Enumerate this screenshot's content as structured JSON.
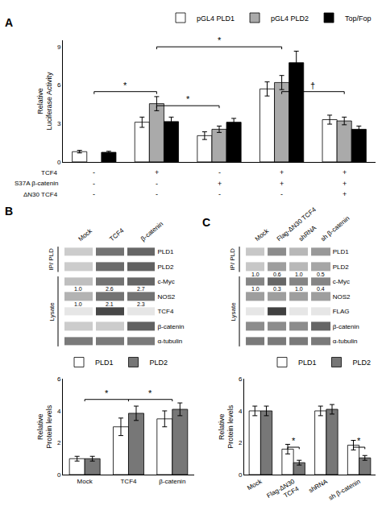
{
  "chart_data": [
    {
      "type": "bar",
      "title": "A",
      "categories": [
        null,
        null,
        null,
        null,
        null
      ],
      "series": [
        {
          "name": "pGL4 PLD1",
          "color": "white",
          "values": [
            0.8,
            3.1,
            2.05,
            5.7,
            3.3
          ],
          "errors": [
            0.1,
            0.4,
            0.3,
            0.55,
            0.35
          ]
        },
        {
          "name": "pGL4 PLD2",
          "color": "#aaaaaa",
          "values": [
            null,
            4.55,
            2.55,
            6.2,
            3.2
          ],
          "errors": [
            null,
            0.55,
            0.25,
            0.55,
            0.3
          ]
        },
        {
          "name": "Top/Fop",
          "color": "black",
          "values": [
            0.75,
            3.15,
            3.1,
            7.75,
            2.55
          ],
          "errors": [
            0.08,
            0.35,
            0.3,
            0.9,
            0.25
          ]
        }
      ],
      "ylabel": "Relative\nLuciferase Activity",
      "ylim": [
        0,
        9.5
      ],
      "yticks": [
        0,
        3,
        6,
        9
      ],
      "conditions": [
        {
          "name": "TCF4",
          "values": [
            "-",
            "+",
            "-",
            "+",
            "+"
          ]
        },
        {
          "name": "S37A β-catenin",
          "values": [
            "-",
            "-",
            "+",
            "+",
            "+"
          ]
        },
        {
          "name": "ΔN30 TCF4",
          "values": [
            "-",
            "-",
            "-",
            "-",
            "+"
          ]
        }
      ],
      "annotations": [
        {
          "text": "*",
          "x": [
            0,
            1
          ],
          "y": 5.3
        },
        {
          "text": "*",
          "x": [
            1,
            2
          ],
          "y": 4.2
        },
        {
          "text": "*",
          "x": [
            1,
            3
          ],
          "y": 8.8
        },
        {
          "text": "†",
          "x": [
            3,
            4
          ],
          "y": 5.3
        }
      ],
      "legend": "upper right",
      "grid": false,
      "tick_labels": "y"
    },
    {
      "type": "heatmap",
      "title": "B",
      "categories": [
        "Mock",
        "TCF4",
        "β-catenin"
      ],
      "rows": [
        "PLD1",
        "PLD2",
        "c-Myc",
        "NOS2",
        "TCF4",
        "β-catenin",
        "α-tubulin"
      ],
      "cells": [
        [
          0.8,
          0.45,
          0.4
        ],
        [
          0.8,
          0.42,
          0.38
        ],
        [
          0.75,
          0.45,
          0.4
        ],
        [
          0.7,
          0.45,
          0.45
        ],
        [
          0.9,
          0.28,
          0.9
        ],
        [
          0.8,
          0.8,
          0.38
        ],
        [
          0.48,
          0.48,
          0.48
        ]
      ],
      "color_range": [
        0,
        1
      ],
      "row_texts": [
        {
          "row": 3,
          "texts": [
            "1.0",
            "2.6",
            "2.7"
          ]
        },
        {
          "row": 4,
          "texts": [
            "1.0",
            "2.1",
            "2.3"
          ]
        }
      ],
      "annotations": [
        {
          "text": "IP/ PLD",
          "rows": [
            0,
            1
          ]
        },
        {
          "text": "Lysate",
          "rows": [
            2,
            6
          ]
        }
      ],
      "grid": false
    },
    {
      "type": "bar",
      "categories": [
        "Mock",
        "TCF4",
        "β-catenin"
      ],
      "series": [
        {
          "name": "PLD1",
          "color": "white",
          "values": [
            1.0,
            3.0,
            3.5
          ],
          "errors": [
            0.15,
            0.55,
            0.5
          ]
        },
        {
          "name": "PLD2",
          "color": "#777777",
          "values": [
            1.0,
            3.85,
            4.1
          ],
          "errors": [
            0.15,
            0.45,
            0.4
          ]
        }
      ],
      "ylabel": "Relative\nProtein levels",
      "ylim": [
        0,
        6
      ],
      "yticks": [
        0,
        2,
        4,
        6
      ],
      "annotations": [
        {
          "text": "*",
          "x": [
            0,
            1
          ],
          "y": 4.6
        },
        {
          "text": "*",
          "x": [
            1,
            2
          ],
          "y": 4.6
        }
      ],
      "legend": "upper left",
      "grid": false
    },
    {
      "type": "heatmap",
      "title": "C",
      "categories": [
        "Mock",
        "Flag-ΔN30 TCF4",
        "shRNA",
        "sh β-catenin"
      ],
      "rows": [
        "PLD1",
        "PLD2",
        "c-Myc",
        "NOS2",
        "FLAG",
        "β-catenin",
        "α-tubulin"
      ],
      "cells": [
        [
          0.78,
          0.55,
          0.72,
          0.6
        ],
        [
          0.78,
          0.62,
          0.72,
          0.65
        ],
        [
          0.52,
          0.4,
          0.52,
          0.52
        ],
        [
          0.62,
          0.62,
          0.62,
          0.62
        ],
        [
          0.9,
          0.25,
          0.9,
          0.9
        ],
        [
          0.55,
          0.55,
          0.55,
          0.4
        ],
        [
          0.48,
          0.48,
          0.48,
          0.48
        ]
      ],
      "color_range": [
        0,
        1
      ],
      "row_texts": [
        {
          "row": 2,
          "texts": [
            "1.0",
            "0.6",
            "1.0",
            "0.5"
          ]
        },
        {
          "row": 3,
          "texts": [
            "1.0",
            "0.3",
            "1.0",
            "0.4"
          ]
        }
      ],
      "annotations": [
        {
          "text": "IP/ PLD",
          "rows": [
            0,
            1
          ]
        },
        {
          "text": "Lysate",
          "rows": [
            2,
            6
          ]
        }
      ],
      "grid": false
    },
    {
      "type": "bar",
      "categories": [
        "Mock",
        "Flag-ΔN30\nTCF4",
        "shRNA",
        "sh β-catenin"
      ],
      "series": [
        {
          "name": "PLD1",
          "color": "white",
          "values": [
            4.0,
            1.6,
            4.0,
            1.85
          ],
          "errors": [
            0.3,
            0.3,
            0.3,
            0.3
          ]
        },
        {
          "name": "PLD2",
          "color": "#777777",
          "values": [
            4.0,
            0.75,
            4.1,
            1.05
          ],
          "errors": [
            0.3,
            0.15,
            0.3,
            0.15
          ]
        }
      ],
      "ylabel": "Relative\nProtein levels",
      "ylim": [
        0,
        6
      ],
      "yticks": [
        0,
        2,
        4,
        6
      ],
      "annotations": [
        {
          "text": "*",
          "x": [
            1,
            1
          ],
          "y": 1.6
        },
        {
          "text": "*",
          "x": [
            3,
            3
          ],
          "y": 1.6
        }
      ],
      "legend": "upper right",
      "grid": false
    }
  ]
}
